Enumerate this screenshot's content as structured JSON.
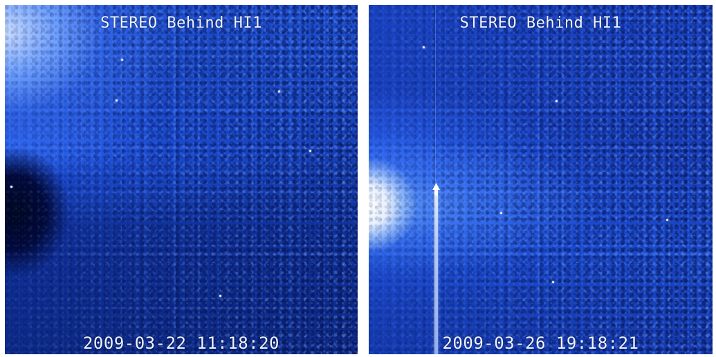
{
  "panels": [
    {
      "title": "STEREO Behind HI1",
      "timestamp": "2009-03-22 11:18:20"
    },
    {
      "title": "STEREO Behind HI1",
      "timestamp": "2009-03-26 19:18:21"
    }
  ],
  "colors": {
    "background_blue": "#0b1f78",
    "glow_blue": "#6ea0ff",
    "text": "#eef3ff"
  }
}
